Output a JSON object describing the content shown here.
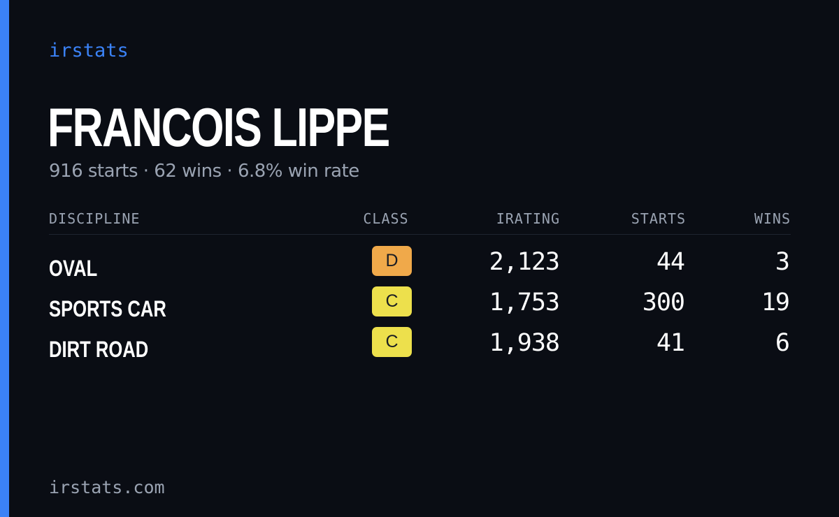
{
  "brand": "irstats",
  "driver": {
    "name": "FRANCOIS LIPPE",
    "summary": "916 starts · 62 wins · 6.8% win rate"
  },
  "table": {
    "headers": {
      "discipline": "DISCIPLINE",
      "class": "CLASS",
      "irating": "IRATING",
      "starts": "STARTS",
      "wins": "WINS"
    },
    "rows": [
      {
        "discipline": "OVAL",
        "class": "D",
        "class_color": "#f0a94a",
        "irating": "2,123",
        "starts": "44",
        "wins": "3"
      },
      {
        "discipline": "SPORTS CAR",
        "class": "C",
        "class_color": "#ede04c",
        "irating": "1,753",
        "starts": "300",
        "wins": "19"
      },
      {
        "discipline": "DIRT ROAD",
        "class": "C",
        "class_color": "#ede04c",
        "irating": "1,938",
        "starts": "41",
        "wins": "6"
      }
    ]
  },
  "footer": "irstats.com",
  "colors": {
    "accent": "#3b82f6",
    "background": "#0a0d14",
    "muted": "#9aa3b2"
  }
}
